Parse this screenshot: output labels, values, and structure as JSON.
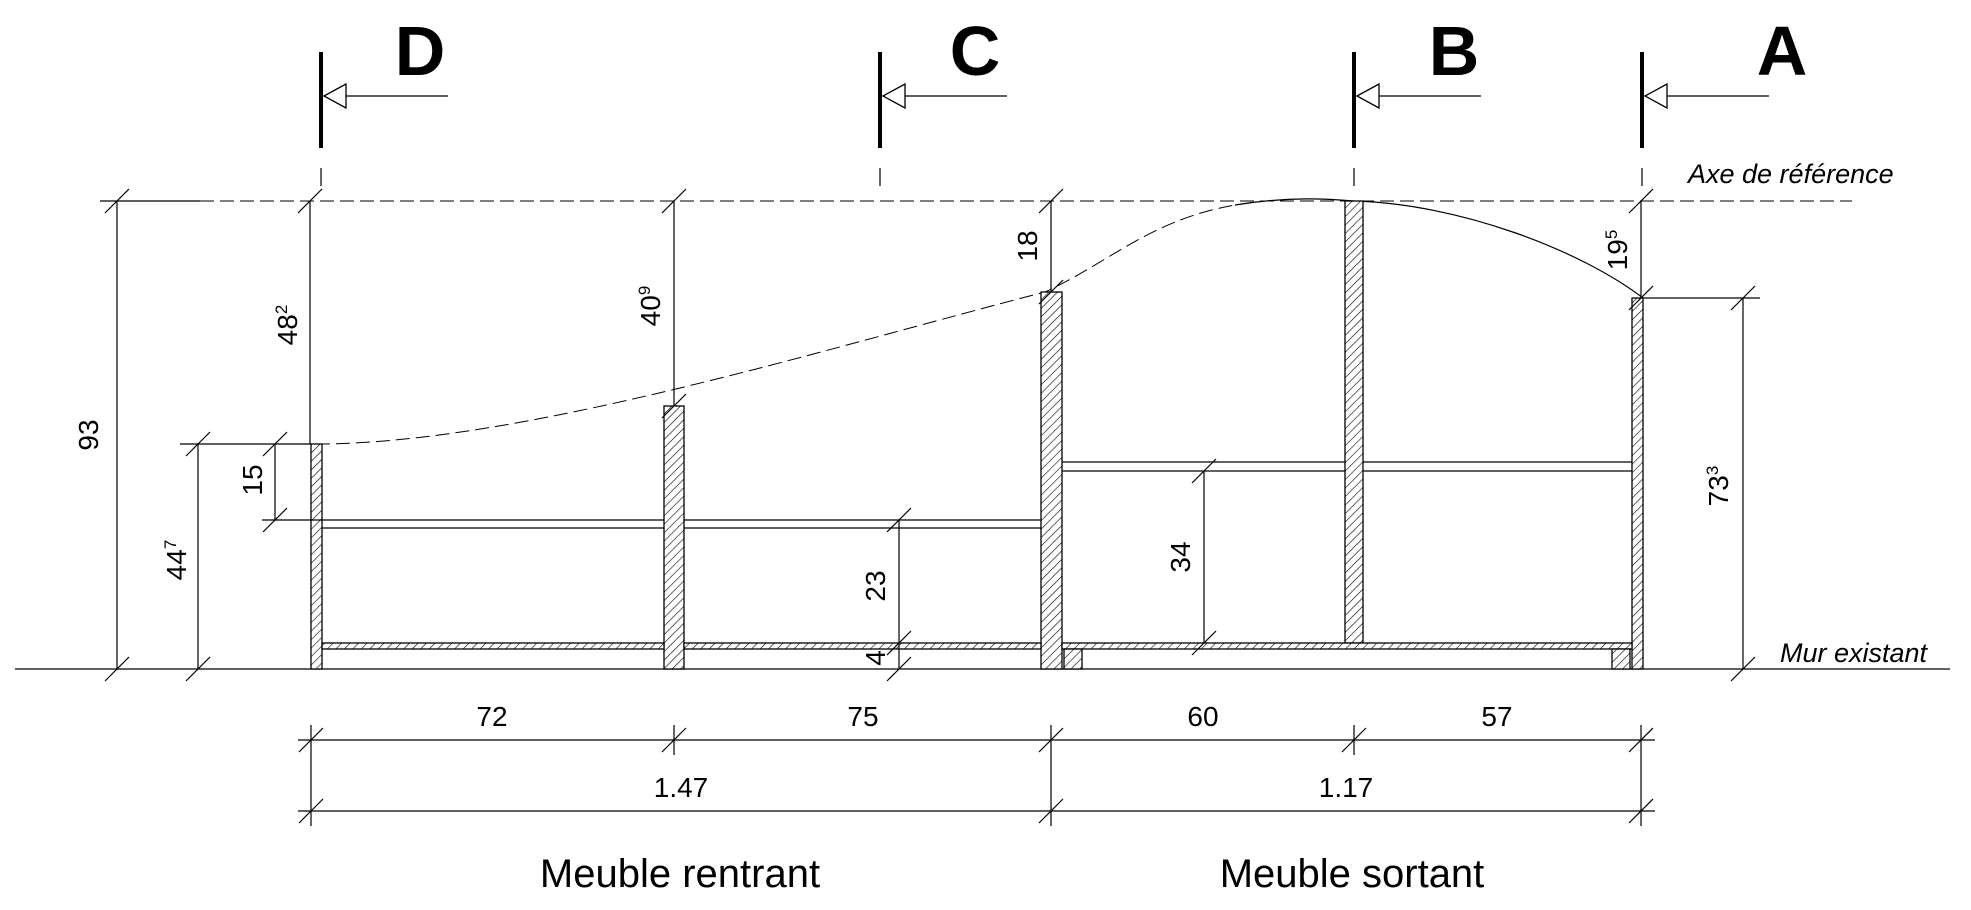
{
  "sections": [
    {
      "label": "D"
    },
    {
      "label": "C"
    },
    {
      "label": "B"
    },
    {
      "label": "A"
    }
  ],
  "reference_axis_label": "Axe de référence",
  "existing_wall_label": "Mur existant",
  "dimensions": {
    "overall_left_height": "93",
    "left_low_height": {
      "base": "44",
      "sup": "7"
    },
    "left_gap": "15",
    "d_to_top": {
      "base": "48",
      "sup": "2"
    },
    "c1_to_top": {
      "base": "40",
      "sup": "9"
    },
    "c_to_top": "18",
    "a_to_top": {
      "base": "19",
      "sup": "5"
    },
    "right_height": {
      "base": "73",
      "sup": "3"
    },
    "shelf_gap_left": "23",
    "base_gap": "4",
    "shelf_gap_right": "34",
    "widths": [
      "72",
      "75",
      "60",
      "57"
    ],
    "totals": [
      "1.47",
      "1.17"
    ]
  },
  "furniture_labels": [
    "Meuble rentrant",
    "Meuble sortant"
  ]
}
